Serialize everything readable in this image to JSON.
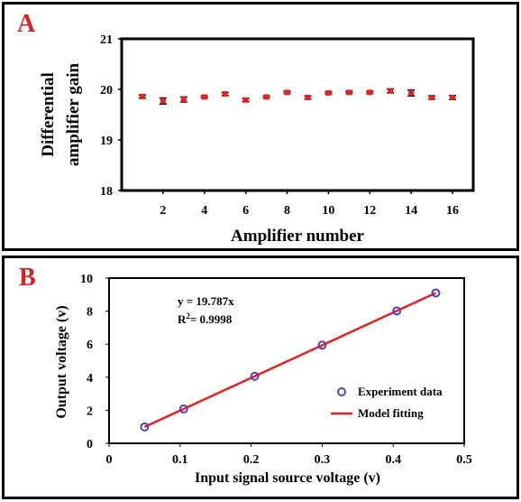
{
  "panel_labels": {
    "a": "A",
    "b": "B"
  },
  "colors": {
    "marker_red": "#e82020",
    "line_red": "#e82020",
    "marker_blue": "#5b3fb3",
    "letter": "#e02020"
  },
  "chart_data": [
    {
      "type": "scatter",
      "panel": "A",
      "title": "",
      "xlabel": "Amplifier number",
      "ylabel_line1": "Differential",
      "ylabel_line2": "amplifier  gain",
      "xlim": [
        0,
        17
      ],
      "ylim": [
        18,
        21
      ],
      "xticks": [
        2,
        4,
        6,
        8,
        10,
        12,
        14,
        16
      ],
      "xtick_labels": [
        "2",
        "4",
        "6",
        "8",
        "10",
        "12",
        "14",
        "16"
      ],
      "yticks": [
        18,
        19,
        20,
        21
      ],
      "ytick_labels": [
        "18",
        "19",
        "20",
        "21"
      ],
      "grid": false,
      "series": [
        {
          "x": [
            1,
            2,
            3,
            4,
            5,
            6,
            7,
            8,
            9,
            10,
            11,
            12,
            13,
            14,
            15,
            16
          ],
          "y": [
            19.86,
            19.77,
            19.8,
            19.85,
            19.91,
            19.79,
            19.85,
            19.94,
            19.84,
            19.93,
            19.94,
            19.94,
            19.97,
            19.93,
            19.84,
            19.84
          ],
          "err": [
            0.03,
            0.06,
            0.05,
            0.02,
            0.03,
            0.03,
            0.02,
            0.02,
            0.03,
            0.02,
            0.02,
            0.02,
            0.04,
            0.06,
            0.03,
            0.04
          ]
        }
      ]
    },
    {
      "type": "scatter",
      "panel": "B",
      "title": "",
      "xlabel": "Input signal source voltage (v)",
      "ylabel": "Output voltage (v)",
      "xlim": [
        0,
        0.5
      ],
      "ylim": [
        0,
        10
      ],
      "xticks": [
        0,
        0.1,
        0.2,
        0.3,
        0.4,
        0.5
      ],
      "xtick_labels": [
        "0",
        "0.1",
        "0.2",
        "0.3",
        "0.4",
        "0.5"
      ],
      "yticks": [
        0,
        2,
        4,
        6,
        8,
        10
      ],
      "ytick_labels": [
        "0",
        "2",
        "4",
        "6",
        "8",
        "10"
      ],
      "grid": false,
      "equation": "y = 19.787x",
      "r2_prefix": "R",
      "r2_sup": "2",
      "r2_value": "= 0.9998",
      "legend_position": "right",
      "series": [
        {
          "name": "Experiment data",
          "kind": "markers",
          "x": [
            0.05,
            0.105,
            0.205,
            0.3,
            0.405,
            0.46
          ],
          "y": [
            0.99,
            2.08,
            4.06,
            5.94,
            8.01,
            9.1
          ]
        },
        {
          "name": "Model fitting",
          "kind": "line",
          "x": [
            0.05,
            0.46
          ],
          "y": [
            0.99,
            9.1
          ]
        }
      ]
    }
  ]
}
